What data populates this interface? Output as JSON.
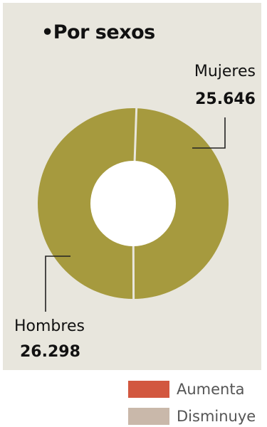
{
  "title": "•Por sexos",
  "chart_data": {
    "type": "pie",
    "donut": true,
    "series": [
      {
        "name": "Mujeres",
        "value": 25646,
        "value_label": "25.646"
      },
      {
        "name": "Hombres",
        "value": 26298,
        "value_label": "26.298"
      }
    ],
    "slice_color": "#a69a3e",
    "separator_color": "#e8e6dd",
    "hole_color": "#ffffff"
  },
  "labels": {
    "mujeres_name": "Mujeres",
    "mujeres_value": "25.646",
    "hombres_name": "Hombres",
    "hombres_value": "26.298"
  },
  "legend": [
    {
      "label": "Aumenta",
      "color": "#d2573f"
    },
    {
      "label": "Disminuye",
      "color": "#c9b8aa"
    }
  ]
}
